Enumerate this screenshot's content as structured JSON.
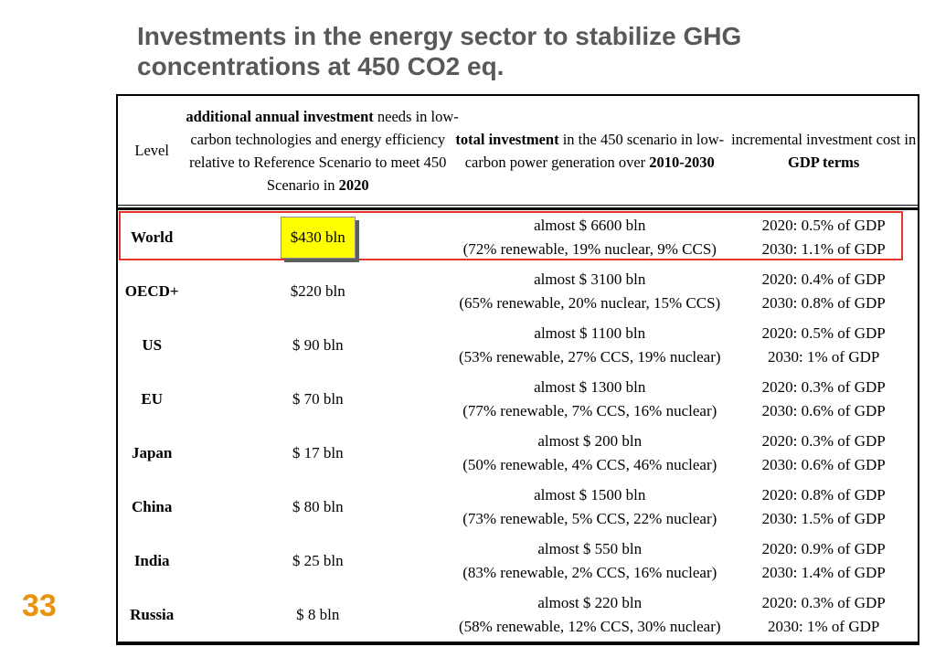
{
  "slide": {
    "title": "Investments in the energy sector to stabilize GHG concentrations at 450 CO2 eq.",
    "page_number": "33"
  },
  "colors": {
    "title_gray": "#595959",
    "page_number_orange": "#e8920e",
    "highlight_yellow": "#ffff00",
    "outline_red": "#e6342c"
  },
  "table": {
    "header": {
      "level": "Level",
      "additional": {
        "line1_bold": "additional annual investment",
        "line1_rest": " needs in low-",
        "line2": "carbon technologies and energy efficiency",
        "line3": "relative to Reference Scenario to meet 450",
        "line4_rest": "Scenario in ",
        "line4_bold": "2020"
      },
      "total": {
        "line1_bold": "total investment",
        "line1_rest": " in the 450 scenario in low-",
        "line2_rest": "carbon power generation over ",
        "line2_bold": "2010-2030"
      },
      "gdp": {
        "line1": "incremental investment cost in",
        "line2": "GDP terms"
      }
    },
    "rows": [
      {
        "level": "World",
        "additional": "$430 bln",
        "highlighted": true,
        "total_line1": "almost $ 6600 bln",
        "total_line2": "(72% renewable, 19% nuclear, 9% CCS)",
        "gdp_line1": "2020: 0.5% of GDP",
        "gdp_line2": "2030: 1.1% of GDP"
      },
      {
        "level": "OECD+",
        "additional": "$220 bln",
        "highlighted": false,
        "total_line1": "almost $ 3100 bln",
        "total_line2": "(65% renewable, 20% nuclear, 15% CCS)",
        "gdp_line1": "2020: 0.4% of GDP",
        "gdp_line2": "2030: 0.8% of GDP"
      },
      {
        "level": "US",
        "additional": "$ 90 bln",
        "highlighted": false,
        "total_line1": "almost $ 1100 bln",
        "total_line2": "(53% renewable, 27% CCS, 19% nuclear)",
        "gdp_line1": "2020: 0.5% of GDP",
        "gdp_line2": "2030: 1% of GDP"
      },
      {
        "level": "EU",
        "additional": "$ 70 bln",
        "highlighted": false,
        "total_line1": "almost $ 1300 bln",
        "total_line2": "(77% renewable, 7% CCS, 16% nuclear)",
        "gdp_line1": "2020: 0.3% of GDP",
        "gdp_line2": "2030: 0.6% of GDP"
      },
      {
        "level": "Japan",
        "additional": "$ 17 bln",
        "highlighted": false,
        "total_line1": "almost $ 200 bln",
        "total_line2": "(50% renewable, 4% CCS, 46% nuclear)",
        "gdp_line1": "2020: 0.3% of GDP",
        "gdp_line2": "2030: 0.6% of GDP"
      },
      {
        "level": "China",
        "additional": "$ 80 bln",
        "highlighted": false,
        "total_line1": "almost $ 1500 bln",
        "total_line2": "(73% renewable, 5% CCS, 22% nuclear)",
        "gdp_line1": "2020: 0.8% of GDP",
        "gdp_line2": "2030: 1.5% of GDP"
      },
      {
        "level": "India",
        "additional": "$ 25 bln",
        "highlighted": false,
        "total_line1": "almost $ 550 bln",
        "total_line2": "(83% renewable, 2% CCS, 16% nuclear)",
        "gdp_line1": "2020: 0.9% of GDP",
        "gdp_line2": "2030: 1.4% of GDP"
      },
      {
        "level": "Russia",
        "additional": "$ 8 bln",
        "highlighted": false,
        "total_line1": "almost $ 220 bln",
        "total_line2": "(58% renewable, 12% CCS, 30% nuclear)",
        "gdp_line1": "2020: 0.3% of GDP",
        "gdp_line2": "2030: 1% of GDP"
      }
    ]
  }
}
